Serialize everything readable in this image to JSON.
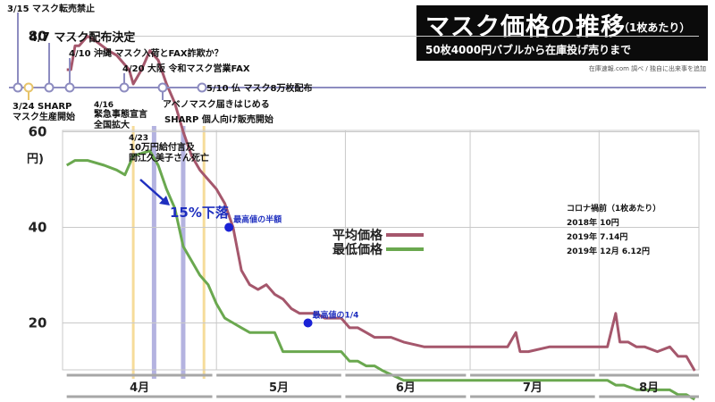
{
  "title": {
    "main": "マスク価格の推移",
    "unit_note": "（1枚あたり）",
    "subtitle": "50枚4000円バブルから在庫投げ売りまで",
    "credit": "在庫速報.com 調べ / 独自に出来事を追加"
  },
  "colors": {
    "avg_line": "#a5576c",
    "min_line": "#6aa84f",
    "timeline": "#8d8cc0",
    "event_band_blue": "#b4b3e0",
    "event_band_yellow": "#f6dc9a",
    "drop_arrow": "#1f2fbf",
    "marker": "#1a22d6"
  },
  "timeline_events": [
    {
      "date_label": "3/15",
      "text": "マスク転売禁止",
      "position": "above"
    },
    {
      "date_label": "4/7",
      "text": "マスク配布決定",
      "position": "above"
    },
    {
      "date_label": "4/10",
      "text": "沖縄 マスク入荷とFAX詐欺か？",
      "position": "above"
    },
    {
      "date_label": "4/20",
      "text": "大阪 令和マスク営業FAX",
      "position": "above"
    },
    {
      "date_label": "5/10",
      "text": "仏 マスク8万枚配布",
      "position": "inline"
    },
    {
      "date_label": "3/24",
      "text": "SHARP マスク生産開始",
      "position": "below"
    },
    {
      "date_label": "4/16",
      "text": "緊急事態宣言 全国拡大",
      "position": "below"
    },
    {
      "date_label": "4/23",
      "text": "10万円給付言及 岡江久美子さん死亡",
      "position": "below"
    },
    {
      "date_label": "",
      "text": "アベノマスク届きはじめる",
      "position": "below"
    },
    {
      "date_label": "",
      "text": "SHARP 個人向け販売開始",
      "position": "below"
    }
  ],
  "annotations": {
    "drop_label": "15%下落",
    "half_label": "最高値の半額",
    "quarter_label": "最高値の1/4"
  },
  "pre_covid": {
    "heading": "コロナ禍前（1枚あたり）",
    "lines": [
      "2018年 10円",
      "2019年 7.14円",
      "2019年 12月 6.12円"
    ]
  },
  "chart_data": {
    "type": "line",
    "ylabel": "円)",
    "ylim": [
      10,
      80
    ],
    "yticks": [
      80,
      60,
      40,
      20
    ],
    "month_labels": [
      "4月",
      "5月",
      "6月",
      "7月",
      "8月"
    ],
    "grid": true,
    "legend_position": "center",
    "series": [
      {
        "name": "平均価格",
        "x": [
          "3/26",
          "3/27",
          "3/28",
          "3/29",
          "3/31",
          "4/2",
          "4/5",
          "4/7",
          "4/9",
          "4/10",
          "4/11",
          "4/13",
          "4/15",
          "4/17",
          "4/19",
          "4/21",
          "4/23",
          "4/25",
          "4/27",
          "4/29",
          "5/1",
          "5/3",
          "5/5",
          "5/7",
          "5/9",
          "5/11",
          "5/13",
          "5/15",
          "5/17",
          "5/19",
          "5/21",
          "5/23",
          "5/25",
          "5/27",
          "5/29",
          "5/31",
          "6/2",
          "6/4",
          "6/6",
          "6/8",
          "6/10",
          "6/12",
          "6/15",
          "6/20",
          "6/25",
          "6/30",
          "7/5",
          "7/10",
          "7/12",
          "7/13",
          "7/15",
          "7/20",
          "7/25",
          "7/30",
          "8/3",
          "8/5",
          "8/6",
          "8/8",
          "8/10",
          "8/12",
          "8/15",
          "8/18",
          "8/20",
          "8/22",
          "8/24"
        ],
        "values": [
          73,
          73,
          78,
          78,
          80,
          79,
          77,
          76,
          74,
          73,
          70,
          73,
          77,
          75,
          70,
          66,
          60,
          55,
          52,
          50,
          48,
          45,
          40,
          31,
          28,
          27,
          28,
          26,
          25,
          23,
          22,
          22,
          22,
          21,
          21,
          21,
          19,
          19,
          18,
          17,
          17,
          17,
          16,
          15,
          15,
          15,
          15,
          15,
          18,
          14,
          14,
          15,
          15,
          15,
          15,
          22,
          16,
          16,
          15,
          15,
          14,
          15,
          13,
          13,
          10
        ]
      },
      {
        "name": "最低価格",
        "x": [
          "3/26",
          "3/28",
          "3/31",
          "4/4",
          "4/7",
          "4/9",
          "4/11",
          "4/15",
          "4/17",
          "4/19",
          "4/21",
          "4/23",
          "4/25",
          "4/27",
          "4/29",
          "5/1",
          "5/3",
          "5/5",
          "5/7",
          "5/9",
          "5/11",
          "5/13",
          "5/15",
          "5/17",
          "5/19",
          "5/21",
          "5/23",
          "5/25",
          "5/27",
          "5/29",
          "5/31",
          "6/2",
          "6/4",
          "6/6",
          "6/8",
          "6/10",
          "6/15",
          "6/20",
          "6/25",
          "6/30",
          "7/5",
          "7/10",
          "7/13",
          "7/15",
          "7/20",
          "7/25",
          "7/30",
          "8/3",
          "8/5",
          "8/7",
          "8/10",
          "8/14",
          "8/18",
          "8/20",
          "8/22",
          "8/24"
        ],
        "values": [
          53,
          54,
          54,
          53,
          52,
          51,
          55,
          56,
          53,
          48,
          44,
          36,
          33,
          30,
          28,
          24,
          21,
          20,
          19,
          18,
          18,
          18,
          18,
          14,
          14,
          14,
          14,
          14,
          14,
          14,
          14,
          12,
          12,
          11,
          11,
          10,
          8,
          8,
          8,
          8,
          8,
          8,
          8,
          8,
          8,
          8,
          8,
          8,
          7,
          7,
          6,
          6,
          6,
          5,
          5,
          4
        ]
      }
    ],
    "markers": [
      {
        "x": "5/4",
        "y": 40,
        "label": "最高値の半額"
      },
      {
        "x": "5/23",
        "y": 20,
        "label": "最高値の1/4"
      }
    ]
  }
}
